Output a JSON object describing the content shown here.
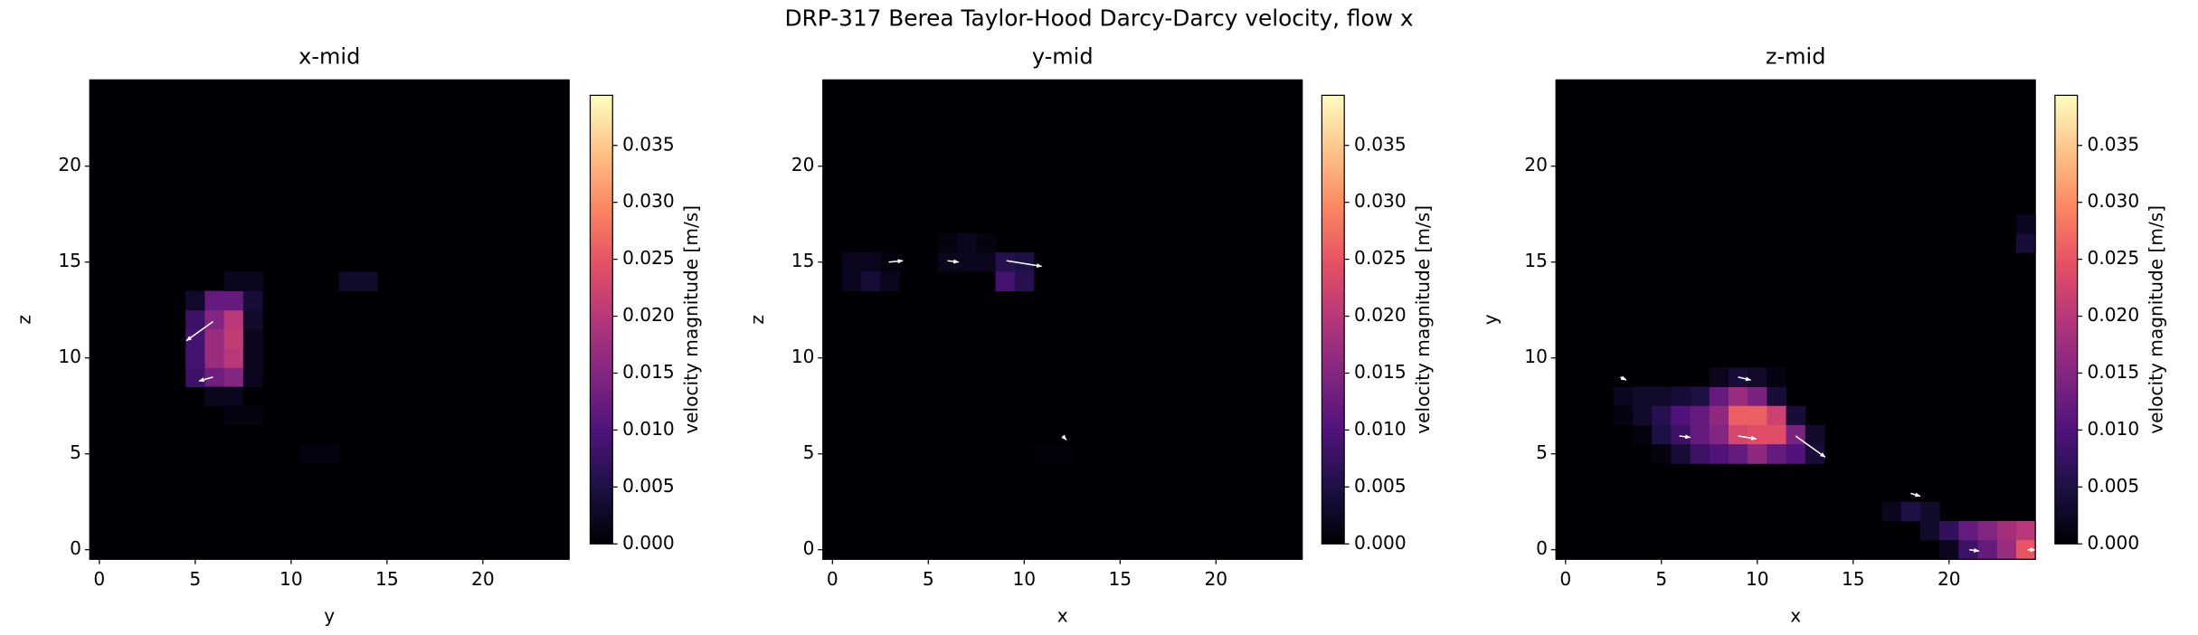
{
  "suptitle": "DRP-317 Berea Taylor-Hood Darcy-Darcy velocity, flow x",
  "chart_data": [
    {
      "type": "heatmap",
      "title": "x-mid",
      "x_label": "y",
      "y_label": "z",
      "colormap": "magma",
      "xlim": [
        -0.5,
        24.5
      ],
      "ylim": [
        -0.5,
        24.5
      ],
      "xticks": [
        0,
        5,
        10,
        15,
        20
      ],
      "yticks": [
        0,
        5,
        10,
        15,
        20
      ],
      "colorbar": {
        "label": "velocity magnitude [m/s]",
        "lim": [
          0,
          0.0394
        ],
        "ticks": [
          {
            "value": 0,
            "label": "0.000"
          },
          0.005,
          {
            "value": 0.01,
            "label": "0.010"
          },
          0.015,
          {
            "value": 0.02,
            "label": "0.020"
          },
          0.025,
          {
            "value": 0.03,
            "label": "0.030"
          },
          0.035
        ]
      },
      "cells": {
        "x": [
          5,
          5,
          5,
          5,
          5,
          6,
          6,
          6,
          6,
          6,
          7,
          7,
          7,
          7,
          7,
          8,
          8,
          8,
          8,
          8,
          7,
          8,
          13,
          14,
          11,
          12,
          6,
          7,
          7,
          8
        ],
        "y": [
          9,
          10,
          11,
          12,
          13,
          9,
          10,
          11,
          12,
          13,
          9,
          10,
          11,
          12,
          13,
          9,
          10,
          11,
          12,
          13,
          14,
          14,
          14,
          14,
          5,
          5,
          8,
          8,
          7,
          7
        ],
        "values": [
          0.008,
          0.009,
          0.009,
          0.008,
          0.003,
          0.013,
          0.017,
          0.017,
          0.015,
          0.012,
          0.015,
          0.02,
          0.021,
          0.02,
          0.012,
          0.002,
          0.002,
          0.002,
          0.003,
          0.004,
          0.002,
          0.002,
          0.003,
          0.003,
          0.001,
          0.001,
          0.002,
          0.002,
          0.001,
          0.001
        ]
      },
      "arrows": {
        "x": [
          5.93,
          5.93
        ],
        "y": [
          11.9,
          9.0
        ],
        "dx": [
          -1.39,
          -0.73
        ],
        "dy": [
          -1.0,
          -0.2
        ]
      }
    },
    {
      "type": "heatmap",
      "title": "y-mid",
      "x_label": "x",
      "y_label": "z",
      "colormap": "magma",
      "xlim": [
        -0.5,
        24.5
      ],
      "ylim": [
        -0.5,
        24.5
      ],
      "xticks": [
        0,
        5,
        10,
        15,
        20
      ],
      "yticks": [
        0,
        5,
        10,
        15,
        20
      ],
      "colorbar": {
        "label": "velocity magnitude [m/s]",
        "lim": [
          0,
          0.0394
        ],
        "ticks": [
          {
            "value": 0,
            "label": "0.000"
          },
          0.005,
          {
            "value": 0.01,
            "label": "0.010"
          },
          0.015,
          {
            "value": 0.02,
            "label": "0.020"
          },
          0.025,
          {
            "value": 0.03,
            "label": "0.030"
          },
          0.035
        ]
      },
      "cells": {
        "x": [
          1,
          2,
          3,
          1,
          2,
          3,
          6,
          7,
          8,
          6,
          7,
          8,
          9,
          10,
          9,
          10,
          11,
          12
        ],
        "y": [
          15,
          15,
          15,
          14,
          14,
          14,
          16,
          16,
          16,
          15,
          15,
          15,
          15,
          15,
          14,
          14,
          5,
          5
        ],
        "values": [
          0.002,
          0.002,
          0.001,
          0.002,
          0.004,
          0.002,
          0.001,
          0.002,
          0.001,
          0.002,
          0.002,
          0.002,
          0.006,
          0.005,
          0.009,
          0.006,
          0.0005,
          0.0005
        ]
      },
      "arrows": {
        "x": [
          2.94,
          6.0,
          9.08,
          12.0
        ],
        "y": [
          15.0,
          15.07,
          15.07,
          5.93
        ],
        "dx": [
          0.73,
          0.58,
          1.83,
          0.2
        ],
        "dy": [
          0.07,
          -0.07,
          -0.29,
          -0.2
        ]
      }
    },
    {
      "type": "heatmap",
      "title": "z-mid",
      "x_label": "x",
      "y_label": "y",
      "colormap": "magma",
      "xlim": [
        -0.5,
        24.5
      ],
      "ylim": [
        -0.5,
        24.5
      ],
      "xticks": [
        0,
        5,
        10,
        15,
        20
      ],
      "yticks": [
        0,
        5,
        10,
        15,
        20
      ],
      "colorbar": {
        "label": "velocity magnitude [m/s]",
        "lim": [
          0,
          0.0394
        ],
        "ticks": [
          {
            "value": 0,
            "label": "0.000"
          },
          0.005,
          {
            "value": 0.01,
            "label": "0.010"
          },
          0.015,
          {
            "value": 0.02,
            "label": "0.020"
          },
          0.025,
          {
            "value": 0.03,
            "label": "0.030"
          },
          0.035
        ]
      },
      "cells": {
        "x": [
          3,
          4,
          5,
          6,
          7,
          8,
          9,
          10,
          11,
          3,
          4,
          5,
          6,
          7,
          8,
          9,
          10,
          11,
          12,
          4,
          5,
          6,
          7,
          8,
          9,
          10,
          11,
          12,
          13,
          5,
          6,
          7,
          8,
          9,
          10,
          11,
          12,
          13,
          8,
          9,
          10,
          11,
          17,
          18,
          19,
          19,
          20,
          21,
          22,
          23,
          24,
          20,
          21,
          22,
          23,
          24,
          24,
          24
        ],
        "y": [
          8,
          8,
          8,
          8,
          8,
          8,
          8,
          8,
          8,
          7,
          7,
          7,
          7,
          7,
          7,
          7,
          7,
          7,
          7,
          6,
          6,
          6,
          6,
          6,
          6,
          6,
          6,
          6,
          6,
          5,
          5,
          5,
          5,
          5,
          5,
          5,
          5,
          5,
          9,
          9,
          9,
          9,
          2,
          2,
          2,
          1,
          1,
          1,
          1,
          1,
          1,
          0,
          0,
          0,
          0,
          0,
          16,
          17
        ],
        "values": [
          0.002,
          0.003,
          0.003,
          0.004,
          0.005,
          0.012,
          0.017,
          0.014,
          0.004,
          0.001,
          0.003,
          0.006,
          0.01,
          0.012,
          0.016,
          0.026,
          0.026,
          0.022,
          0.004,
          0.001,
          0.005,
          0.008,
          0.012,
          0.015,
          0.023,
          0.024,
          0.024,
          0.014,
          0.003,
          0.001,
          0.004,
          0.008,
          0.01,
          0.012,
          0.016,
          0.012,
          0.01,
          0.004,
          0.002,
          0.004,
          0.003,
          0.001,
          0.002,
          0.005,
          0.003,
          0.003,
          0.007,
          0.012,
          0.015,
          0.018,
          0.02,
          0.002,
          0.008,
          0.012,
          0.017,
          0.025,
          0.004,
          0.002
        ]
      },
      "arrows": {
        "x": [
          2.86,
          9.0,
          5.93,
          9.0,
          12.0,
          18.0,
          21.06,
          24.1
        ],
        "y": [
          9.0,
          9.0,
          5.93,
          5.93,
          5.93,
          2.94,
          0.0,
          0.0
        ],
        "dx": [
          0.3,
          0.66,
          0.58,
          0.95,
          1.54,
          0.5,
          0.5,
          0.4
        ],
        "dy": [
          -0.15,
          -0.15,
          -0.07,
          -0.15,
          -1.1,
          -0.15,
          -0.07,
          0.0
        ]
      }
    }
  ]
}
